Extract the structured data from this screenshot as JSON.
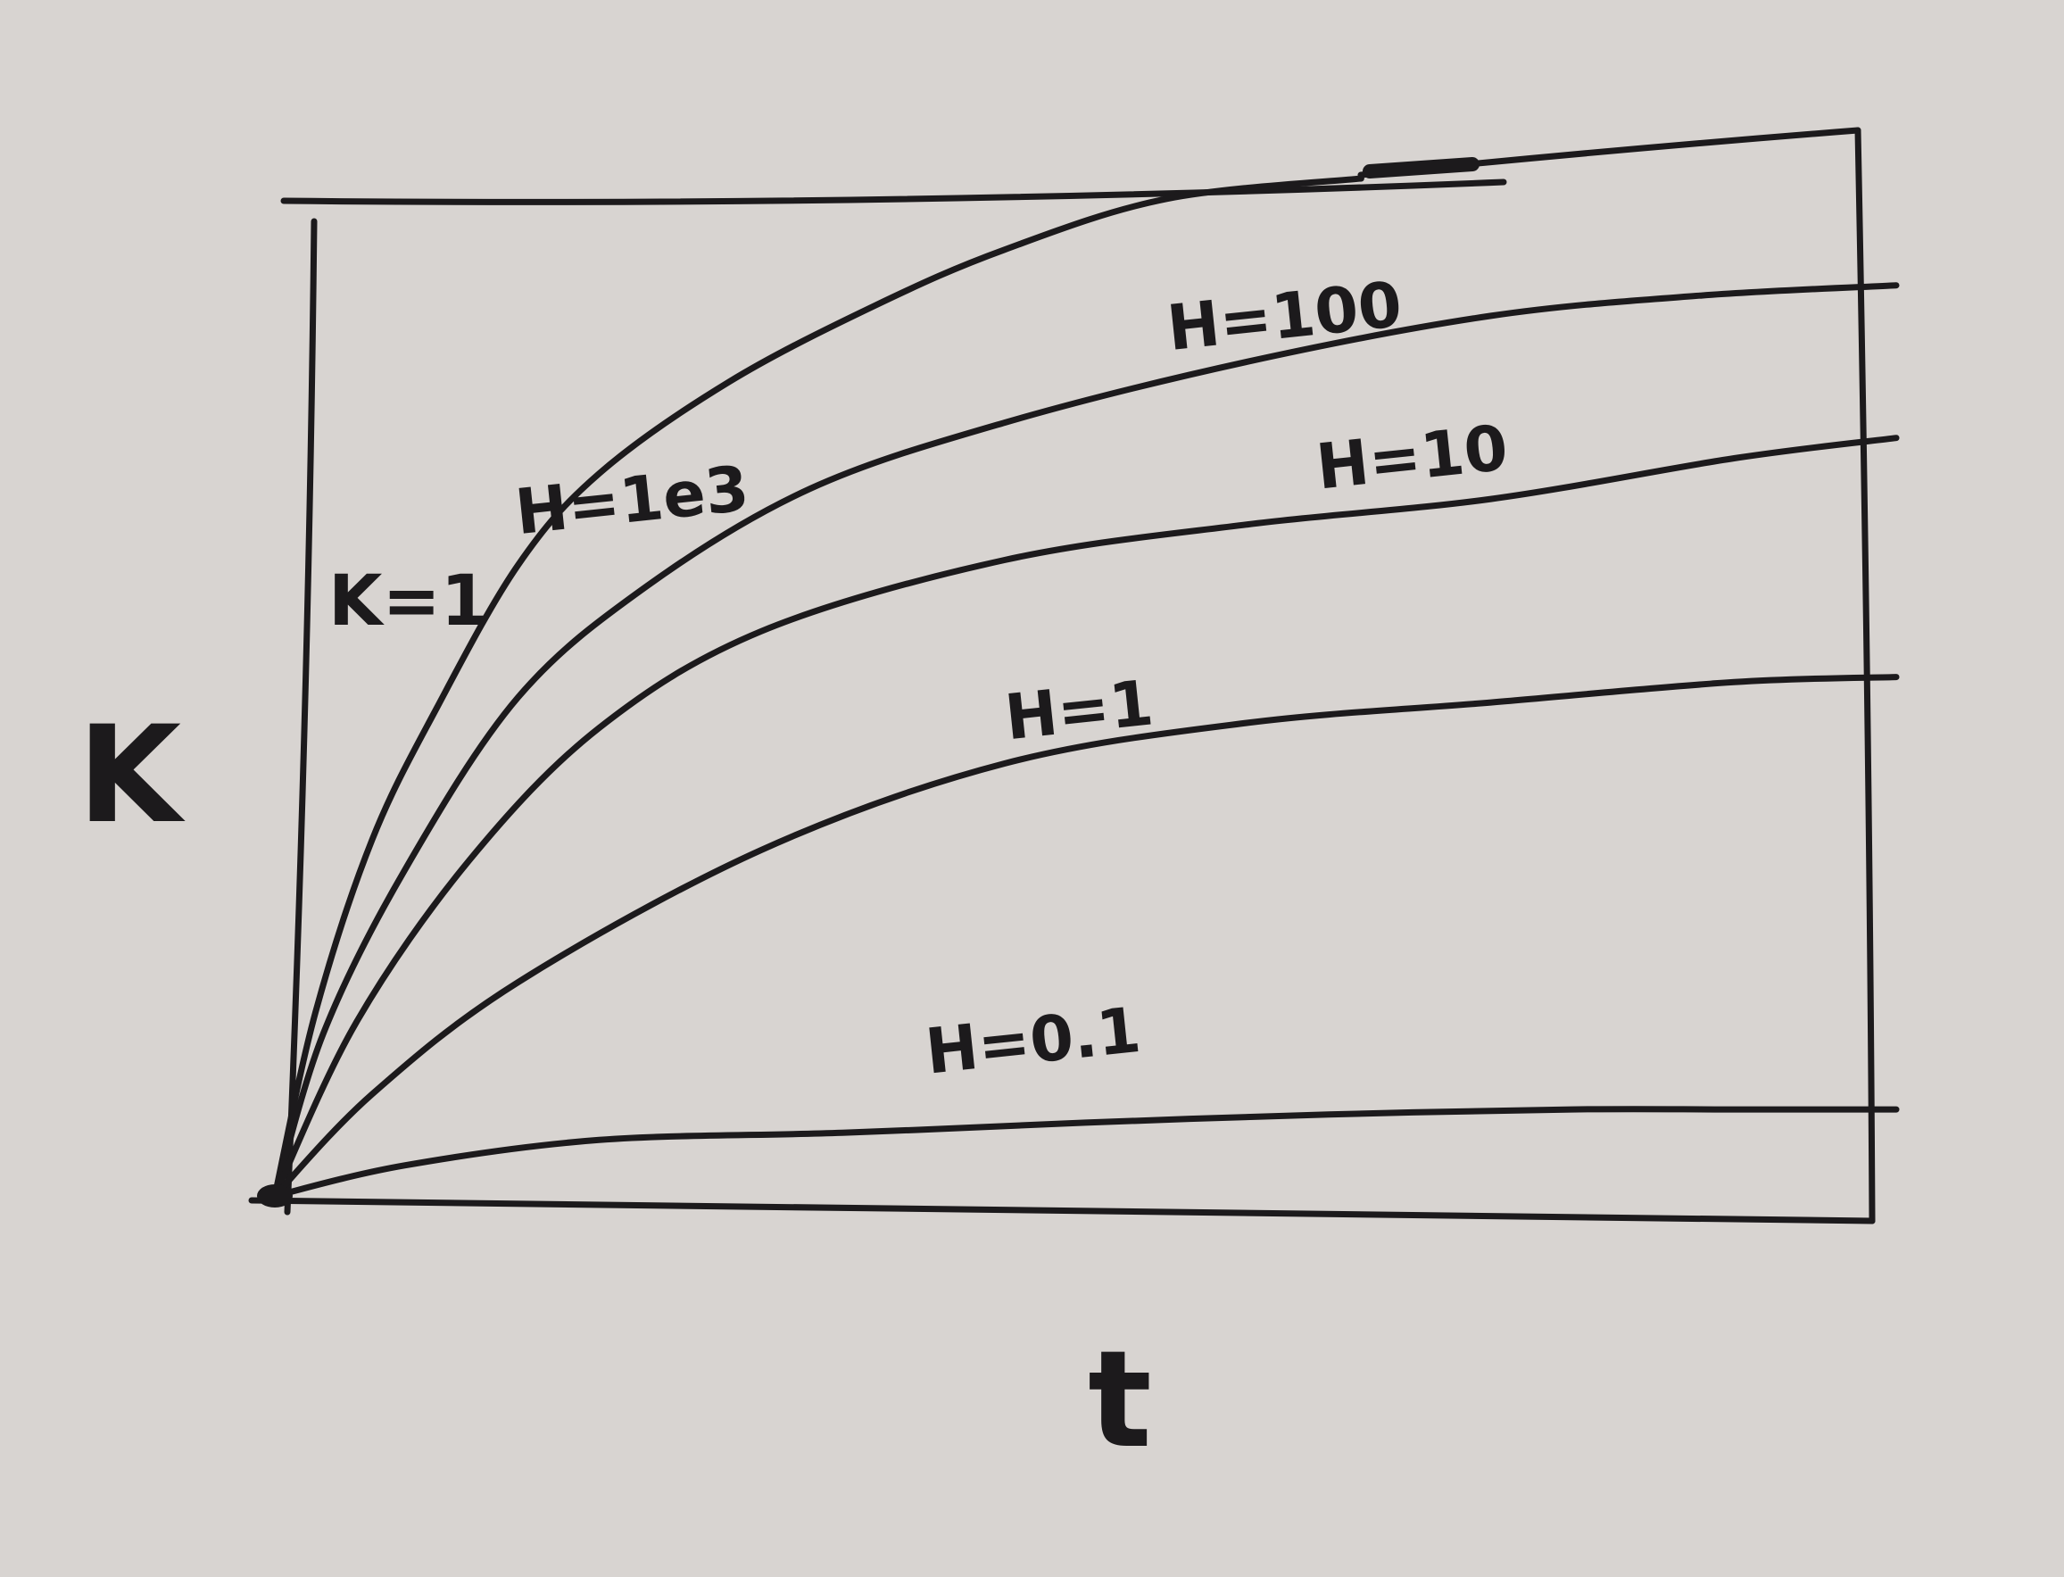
{
  "chart_data": {
    "type": "line",
    "style": "hand-drawn sketch",
    "title": "",
    "xlabel": "t",
    "ylabel": "K",
    "xlim": [
      0,
      10
    ],
    "ylim": [
      0,
      10
    ],
    "grid": false,
    "legend": "none (labels drawn on lines)",
    "annotations": [
      {
        "text": "K=1",
        "position": "upper-left, inside frame"
      }
    ],
    "series": [
      {
        "name": "H=1e3",
        "label": "H=1e3",
        "x": [
          0,
          0.25,
          0.6,
          1,
          1.5,
          2,
          2.8,
          3.7,
          4.5,
          5.5,
          6.7
        ],
        "y": [
          0,
          1.8,
          3.5,
          4.8,
          6.2,
          7.1,
          8.0,
          8.75,
          9.3,
          9.8,
          10.0
        ]
      },
      {
        "name": "H=100",
        "label": "H=100",
        "x": [
          0,
          0.3,
          0.8,
          1.5,
          2.3,
          3.3,
          4.5,
          6,
          7.5,
          8.8,
          10
        ],
        "y": [
          0,
          1.6,
          3.2,
          4.9,
          6.0,
          6.95,
          7.6,
          8.2,
          8.65,
          8.85,
          8.95
        ]
      },
      {
        "name": "H=10",
        "label": "H=10",
        "x": [
          0,
          0.5,
          1.2,
          2,
          3,
          4.5,
          6,
          7.5,
          9,
          10
        ],
        "y": [
          0,
          1.7,
          3.3,
          4.6,
          5.55,
          6.25,
          6.6,
          6.85,
          7.25,
          7.45
        ]
      },
      {
        "name": "H=1",
        "label": "H=1",
        "x": [
          0,
          0.6,
          1.5,
          3,
          4.5,
          6,
          7.5,
          9,
          10
        ],
        "y": [
          0,
          1.0,
          2.1,
          3.4,
          4.25,
          4.65,
          4.85,
          5.05,
          5.1
        ]
      },
      {
        "name": "H=0.1",
        "label": "H=0.1",
        "x": [
          0,
          0.8,
          2,
          3.5,
          5,
          6.5,
          8,
          9,
          10
        ],
        "y": [
          0,
          0.3,
          0.55,
          0.62,
          0.72,
          0.8,
          0.85,
          0.85,
          0.85
        ]
      }
    ]
  }
}
